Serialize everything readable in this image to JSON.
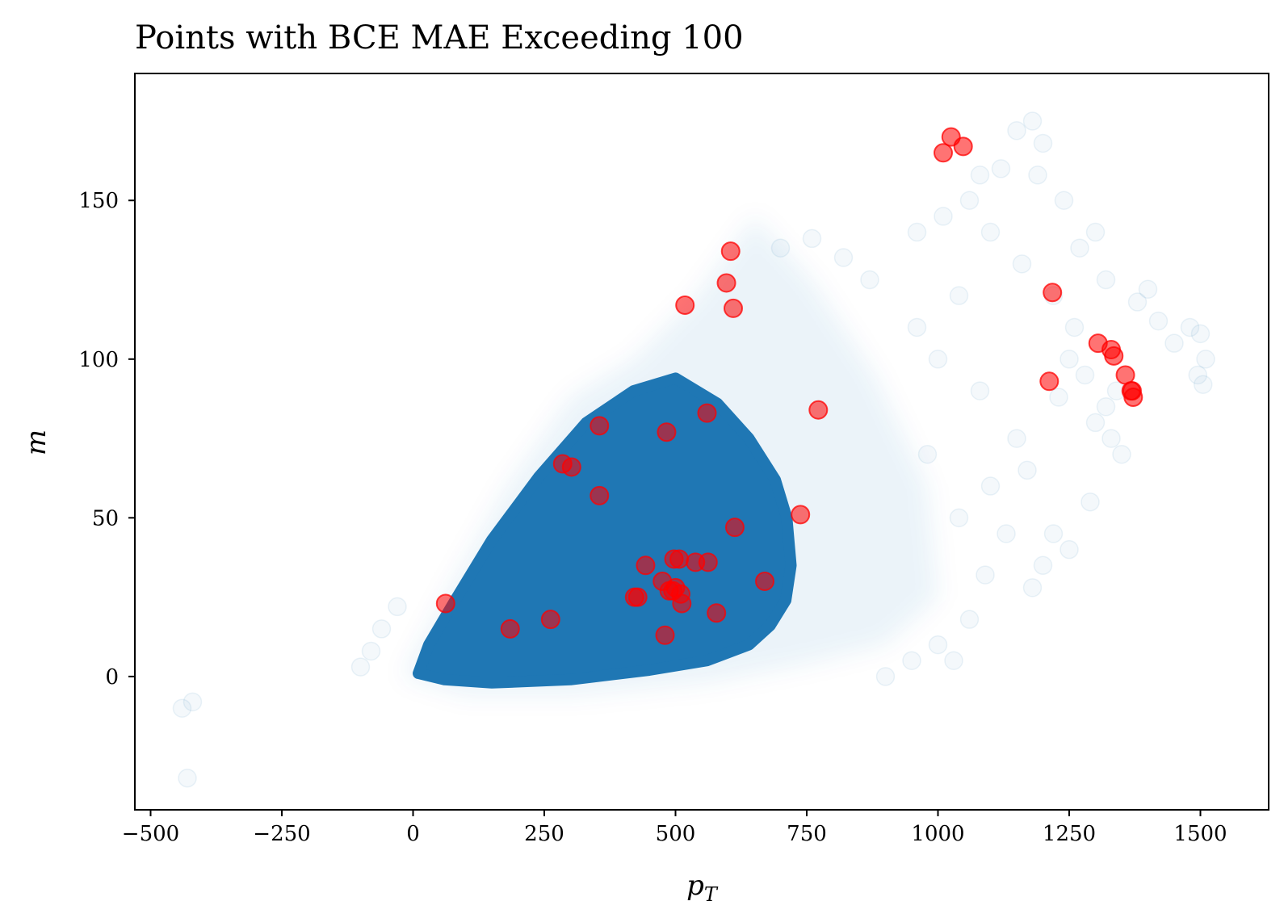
{
  "chart_data": {
    "type": "scatter",
    "title": "Points with BCE MAE Exceeding 100",
    "xlabel": "p",
    "xlabel_sub": "T",
    "ylabel": "m",
    "xlim": [
      -530,
      1630
    ],
    "ylim": [
      -42,
      190
    ],
    "xticks": [
      -500,
      -250,
      0,
      250,
      500,
      750,
      1000,
      1250,
      1500
    ],
    "xtick_labels": [
      "−500",
      "−250",
      "0",
      "250",
      "500",
      "750",
      "1000",
      "1250",
      "1500"
    ],
    "yticks": [
      0,
      50,
      100,
      150
    ],
    "ytick_labels": [
      "0",
      "50",
      "100",
      "150"
    ],
    "grid": false,
    "colors": {
      "background_points": "#1f77b4",
      "highlight_points": "#ff0000"
    },
    "background_region": {
      "description": "dense",
      "polygon": [
        [
          10,
          1
        ],
        [
          60,
          -1
        ],
        [
          150,
          -2
        ],
        [
          300,
          -1
        ],
        [
          450,
          2
        ],
        [
          560,
          5
        ],
        [
          640,
          10
        ],
        [
          680,
          16
        ],
        [
          710,
          24
        ],
        [
          720,
          35
        ],
        [
          712,
          50
        ],
        [
          690,
          62
        ],
        [
          640,
          75
        ],
        [
          580,
          86
        ],
        [
          500,
          94
        ],
        [
          420,
          90
        ],
        [
          330,
          80
        ],
        [
          240,
          63
        ],
        [
          150,
          43
        ],
        [
          80,
          24
        ],
        [
          30,
          10
        ]
      ],
      "halo": [
        [
          -20,
          0
        ],
        [
          100,
          -6
        ],
        [
          300,
          -6
        ],
        [
          560,
          -2
        ],
        [
          750,
          4
        ],
        [
          900,
          10
        ],
        [
          1000,
          25
        ],
        [
          980,
          60
        ],
        [
          880,
          95
        ],
        [
          760,
          125
        ],
        [
          650,
          145
        ],
        [
          540,
          120
        ],
        [
          420,
          100
        ],
        [
          300,
          88
        ],
        [
          180,
          60
        ],
        [
          60,
          25
        ]
      ]
    },
    "faint_points": [
      [
        -440,
        -10
      ],
      [
        -420,
        -8
      ],
      [
        -430,
        -32
      ],
      [
        1120,
        160
      ],
      [
        1150,
        172
      ],
      [
        1180,
        175
      ],
      [
        1200,
        168
      ],
      [
        1190,
        158
      ],
      [
        1080,
        158
      ],
      [
        1060,
        150
      ],
      [
        1010,
        145
      ],
      [
        960,
        140
      ],
      [
        1100,
        140
      ],
      [
        1240,
        150
      ],
      [
        1270,
        135
      ],
      [
        1300,
        140
      ],
      [
        1320,
        125
      ],
      [
        1420,
        112
      ],
      [
        1450,
        105
      ],
      [
        1480,
        110
      ],
      [
        1500,
        108
      ],
      [
        1510,
        100
      ],
      [
        1495,
        95
      ],
      [
        1505,
        92
      ],
      [
        1400,
        122
      ],
      [
        1380,
        118
      ],
      [
        1250,
        100
      ],
      [
        1280,
        95
      ],
      [
        1230,
        88
      ],
      [
        1300,
        80
      ],
      [
        1350,
        70
      ],
      [
        1330,
        75
      ],
      [
        1290,
        55
      ],
      [
        1250,
        40
      ],
      [
        1220,
        45
      ],
      [
        1200,
        35
      ],
      [
        1180,
        28
      ],
      [
        1060,
        18
      ],
      [
        1000,
        10
      ],
      [
        950,
        5
      ],
      [
        900,
        0
      ],
      [
        1100,
        60
      ],
      [
        1150,
        75
      ],
      [
        1080,
        90
      ],
      [
        1000,
        100
      ],
      [
        960,
        110
      ],
      [
        1040,
        120
      ],
      [
        870,
        125
      ],
      [
        820,
        132
      ],
      [
        760,
        138
      ],
      [
        700,
        135
      ],
      [
        1170,
        65
      ],
      [
        1130,
        45
      ],
      [
        1090,
        32
      ],
      [
        1040,
        50
      ],
      [
        980,
        70
      ],
      [
        1340,
        90
      ],
      [
        1320,
        85
      ],
      [
        1260,
        110
      ],
      [
        1220,
        120
      ],
      [
        1160,
        130
      ],
      [
        -100,
        3
      ],
      [
        -80,
        8
      ],
      [
        -60,
        15
      ],
      [
        -30,
        22
      ],
      [
        1030,
        5
      ]
    ],
    "highlight_points": [
      [
        1010,
        165
      ],
      [
        1025,
        170
      ],
      [
        1048,
        167
      ],
      [
        605,
        134
      ],
      [
        597,
        124
      ],
      [
        610,
        116
      ],
      [
        518,
        117
      ],
      [
        1218,
        121
      ],
      [
        1305,
        105
      ],
      [
        1330,
        103
      ],
      [
        1335,
        101
      ],
      [
        1212,
        93
      ],
      [
        1357,
        95
      ],
      [
        1368,
        90
      ],
      [
        1372,
        88
      ],
      [
        1370,
        90
      ],
      [
        772,
        84
      ],
      [
        560,
        83
      ],
      [
        355,
        79
      ],
      [
        483,
        77
      ],
      [
        285,
        67
      ],
      [
        302,
        66
      ],
      [
        355,
        57
      ],
      [
        738,
        51
      ],
      [
        613,
        47
      ],
      [
        497,
        37
      ],
      [
        507,
        37
      ],
      [
        538,
        36
      ],
      [
        562,
        36
      ],
      [
        443,
        35
      ],
      [
        670,
        30
      ],
      [
        475,
        30
      ],
      [
        500,
        28
      ],
      [
        488,
        27
      ],
      [
        495,
        27
      ],
      [
        510,
        26
      ],
      [
        422,
        25
      ],
      [
        428,
        25
      ],
      [
        512,
        23
      ],
      [
        62,
        23
      ],
      [
        578,
        20
      ],
      [
        262,
        18
      ],
      [
        185,
        15
      ],
      [
        480,
        13
      ]
    ]
  }
}
